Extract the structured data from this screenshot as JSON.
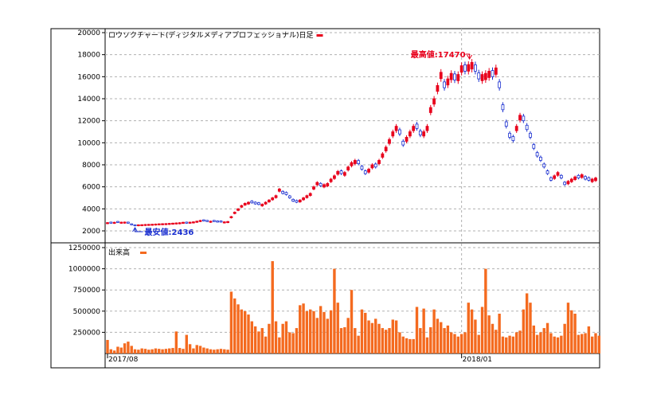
{
  "colors": {
    "frame": "#000000",
    "grid": "#b0b0b0",
    "up": "#e8001c",
    "down": "#1a2fd0",
    "volume": "#f46a1f",
    "annotation_high": "#e8001c",
    "annotation_low": "#1a2fd0"
  },
  "chart_data": [
    {
      "type": "candlestick",
      "title": "ロウソクチャート(ディジタルメディアプロフェッショナル)日足",
      "legend": "top-left",
      "grid": true,
      "ylim": [
        1500,
        20000
      ],
      "y_ticks": [
        "20000",
        "18000",
        "16000",
        "14000",
        "12000",
        "10000",
        "8000",
        "6000",
        "4000",
        "2000"
      ],
      "x_ticks": [
        "2017/08",
        "2018/01"
      ],
      "x_tick_index": [
        0,
        103
      ],
      "max_label": "最高値:17470",
      "max_value": 17470,
      "max_index": 106,
      "min_label": "最安値:2436",
      "min_value": 2436,
      "min_index": 8,
      "close": [
        2750,
        2700,
        2780,
        2760,
        2790,
        2800,
        2700,
        2550,
        2460,
        2550,
        2560,
        2580,
        2590,
        2600,
        2620,
        2640,
        2650,
        2660,
        2680,
        2700,
        2720,
        2740,
        2780,
        2700,
        2790,
        2820,
        2880,
        2950,
        2900,
        2850,
        2880,
        2850,
        2800,
        2800,
        2820,
        2850,
        3300,
        3700,
        4000,
        4300,
        4500,
        4600,
        4550,
        4450,
        4400,
        4420,
        4600,
        4800,
        5000,
        5200,
        5800,
        5400,
        5300,
        5000,
        4700,
        4600,
        4800,
        5000,
        5200,
        5400,
        6000,
        6400,
        6100,
        6200,
        6300,
        6700,
        7000,
        7400,
        7200,
        7300,
        7800,
        8200,
        8400,
        8100,
        7600,
        7200,
        7600,
        8000,
        7800,
        8400,
        9000,
        9600,
        10300,
        11000,
        11500,
        10800,
        9800,
        10500,
        11000,
        11500,
        11300,
        10700,
        11000,
        11500,
        13200,
        14000,
        15200,
        16400,
        15000,
        15800,
        16300,
        15700,
        16200,
        17000,
        16500,
        17100,
        17300,
        16500,
        15800,
        16200,
        16300,
        16500,
        16000,
        16800,
        15000,
        13000,
        11500,
        10500,
        10200,
        11500,
        12500,
        12000,
        11200,
        10500,
        9500,
        8800,
        8400,
        7800,
        7200,
        6600,
        7000,
        7300,
        6800,
        6200,
        6500,
        6700,
        6900,
        6800,
        7100,
        6700,
        6600,
        6700,
        6800
      ],
      "up": [
        true,
        false,
        true,
        false,
        true,
        true,
        false,
        false,
        false,
        true,
        true,
        true,
        true,
        true,
        true,
        true,
        true,
        true,
        true,
        true,
        true,
        true,
        true,
        false,
        true,
        true,
        true,
        true,
        false,
        false,
        true,
        false,
        false,
        false,
        true,
        true,
        true,
        true,
        true,
        true,
        true,
        true,
        false,
        false,
        false,
        true,
        true,
        true,
        true,
        true,
        true,
        false,
        false,
        false,
        false,
        false,
        true,
        true,
        true,
        true,
        true,
        true,
        false,
        true,
        true,
        true,
        true,
        true,
        false,
        true,
        true,
        true,
        true,
        false,
        false,
        false,
        true,
        true,
        false,
        true,
        true,
        true,
        true,
        true,
        true,
        false,
        false,
        true,
        true,
        true,
        false,
        false,
        true,
        true,
        true,
        true,
        true,
        true,
        false,
        true,
        true,
        false,
        true,
        true,
        false,
        true,
        true,
        false,
        false,
        true,
        true,
        true,
        false,
        true,
        false,
        false,
        false,
        false,
        false,
        true,
        true,
        false,
        false,
        false,
        false,
        false,
        false,
        false,
        false,
        false,
        true,
        true,
        false,
        false,
        true,
        true,
        true,
        false,
        true,
        false,
        false,
        true,
        true
      ]
    },
    {
      "type": "bar",
      "title": "出来高",
      "ylim": [
        0,
        1250000
      ],
      "y_ticks": [
        "1250000",
        "1000000",
        "750000",
        "500000",
        "250000"
      ],
      "values": [
        160000,
        50000,
        35000,
        80000,
        70000,
        120000,
        140000,
        90000,
        50000,
        45000,
        60000,
        55000,
        45000,
        50000,
        60000,
        55000,
        50000,
        55000,
        60000,
        65000,
        260000,
        65000,
        55000,
        220000,
        110000,
        60000,
        100000,
        90000,
        70000,
        60000,
        50000,
        45000,
        50000,
        55000,
        50000,
        45000,
        730000,
        650000,
        580000,
        520000,
        500000,
        460000,
        380000,
        320000,
        260000,
        300000,
        200000,
        350000,
        1090000,
        380000,
        190000,
        350000,
        380000,
        250000,
        240000,
        300000,
        570000,
        590000,
        500000,
        520000,
        500000,
        420000,
        560000,
        490000,
        410000,
        510000,
        1000000,
        600000,
        300000,
        310000,
        420000,
        750000,
        300000,
        210000,
        520000,
        480000,
        390000,
        360000,
        410000,
        350000,
        300000,
        280000,
        300000,
        400000,
        390000,
        250000,
        200000,
        180000,
        170000,
        170000,
        550000,
        300000,
        530000,
        190000,
        310000,
        520000,
        410000,
        370000,
        300000,
        330000,
        250000,
        230000,
        200000,
        230000,
        250000,
        600000,
        520000,
        400000,
        220000,
        550000,
        1000000,
        450000,
        350000,
        280000,
        470000,
        200000,
        190000,
        210000,
        200000,
        250000,
        270000,
        520000,
        710000,
        600000,
        330000,
        220000,
        250000,
        300000,
        360000,
        240000,
        200000,
        190000,
        210000,
        350000,
        600000,
        510000,
        470000,
        220000,
        230000,
        240000,
        320000,
        200000,
        240000,
        210000
      ]
    }
  ]
}
